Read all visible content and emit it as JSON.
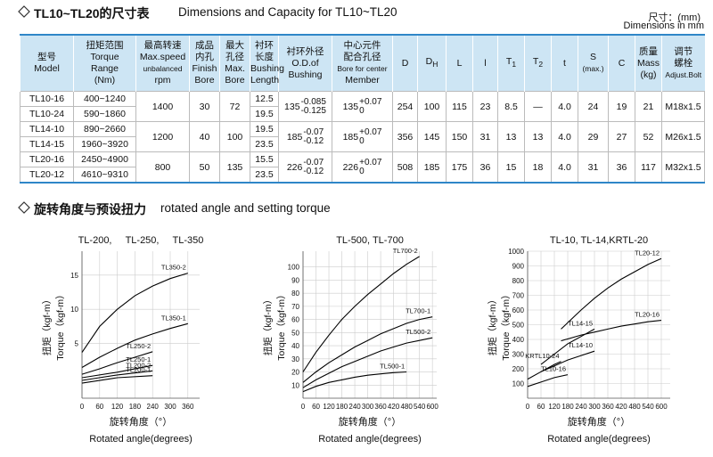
{
  "header": {
    "title_cn": "TL10~TL20的尺寸表",
    "title_en": "Dimensions and Capacity for TL10~TL20",
    "unit_cn": "尺寸：(mm)",
    "unit_en": "Dimensions in mm"
  },
  "table": {
    "columns": [
      {
        "lines": [
          "型号",
          "Model"
        ]
      },
      {
        "lines": [
          "扭矩范围",
          "Torque",
          "Range",
          "(Nm)"
        ]
      },
      {
        "lines": [
          "最高转速",
          "Max.speed",
          "unbalanced",
          "rpm"
        ]
      },
      {
        "lines": [
          "成品",
          "内孔",
          "Finish",
          "Bore"
        ]
      },
      {
        "lines": [
          "最大",
          "孔径",
          "Max.",
          "Bore"
        ]
      },
      {
        "lines": [
          "衬环",
          "长度",
          "Bushing",
          "Length"
        ]
      },
      {
        "lines": [
          "衬环外径",
          "O.D.of",
          "Bushing"
        ]
      },
      {
        "lines": [
          "中心元件",
          "配合孔径",
          "Bore for center",
          "Member"
        ]
      },
      {
        "lines": [
          "D"
        ]
      },
      {
        "lines": [
          "D"
        ],
        "sub": "H"
      },
      {
        "lines": [
          "L"
        ]
      },
      {
        "lines": [
          "l"
        ]
      },
      {
        "lines": [
          "T"
        ],
        "sub": "1"
      },
      {
        "lines": [
          "T"
        ],
        "sub": "2"
      },
      {
        "lines": [
          "t"
        ]
      },
      {
        "lines": [
          "S",
          "(max.)"
        ]
      },
      {
        "lines": [
          "C"
        ]
      },
      {
        "lines": [
          "质量",
          "Mass",
          "(kg)"
        ]
      },
      {
        "lines": [
          "调节",
          "螺栓",
          "Adjust.Bolt"
        ]
      }
    ],
    "groups": [
      {
        "models": [
          "TL10-16",
          "TL10-24"
        ],
        "torque": [
          "400~1240",
          "590~1860"
        ],
        "speed": "1400",
        "finish": "30",
        "max_bore": "72",
        "bushing_length": [
          "12.5",
          "19.5"
        ],
        "od": {
          "base": "135",
          "upper": "-0.085",
          "lower": "-0.125"
        },
        "bore": {
          "base": "135",
          "upper": "+0.07",
          "lower": "0"
        },
        "dims": [
          "254",
          "100",
          "115",
          "23",
          "8.5",
          "—",
          "4.0",
          "24",
          "19",
          "21"
        ],
        "bolt": "M18x1.5"
      },
      {
        "models": [
          "TL14-10",
          "TL14-15"
        ],
        "torque": [
          "890~2660",
          "1960~3920"
        ],
        "speed": "1200",
        "finish": "40",
        "max_bore": "100",
        "bushing_length": [
          "19.5",
          "23.5"
        ],
        "od": {
          "base": "185",
          "upper": "-0.07",
          "lower": "-0.12"
        },
        "bore": {
          "base": "185",
          "upper": "+0.07",
          "lower": "0"
        },
        "dims": [
          "356",
          "145",
          "150",
          "31",
          "13",
          "13",
          "4.0",
          "29",
          "27",
          "52"
        ],
        "bolt": "M26x1.5"
      },
      {
        "models": [
          "TL20-16",
          "TL20-12"
        ],
        "torque": [
          "2450~4900",
          "4610~9310"
        ],
        "speed": "800",
        "finish": "50",
        "max_bore": "135",
        "bushing_length": [
          "15.5",
          "23.5"
        ],
        "od": {
          "base": "226",
          "upper": "-0.07",
          "lower": "-0.12"
        },
        "bore": {
          "base": "226",
          "upper": "+0.07",
          "lower": "0"
        },
        "dims": [
          "508",
          "185",
          "175",
          "36",
          "15",
          "18",
          "4.0",
          "31",
          "36",
          "117"
        ],
        "bolt": "M32x1.5"
      }
    ]
  },
  "section": {
    "title_cn": "旋转角度与预设扭力",
    "title_en": "rotated angle  and setting torque"
  },
  "chart_data": [
    {
      "type": "line",
      "title": "TL-200,     TL-250,     TL-350",
      "y_label": [
        "扭矩（kgf-m）",
        "Torque（kgf-m）"
      ],
      "x_label": [
        "旋转角度（°）",
        "Rotated angle(degrees)"
      ],
      "xlim": [
        0,
        400
      ],
      "ylim": [
        -3,
        18.5
      ],
      "xticks": [
        0,
        60,
        120,
        180,
        240,
        300,
        360
      ],
      "yticks": [
        5,
        10,
        15
      ],
      "grid": true,
      "color": "#000000",
      "series": [
        {
          "name": "TL350-2",
          "x": [
            0,
            60,
            120,
            180,
            240,
            300,
            360
          ],
          "values": [
            3.7,
            7.5,
            10,
            12,
            13.4,
            14.5,
            15.3
          ]
        },
        {
          "name": "TL350-1",
          "x": [
            0,
            60,
            120,
            180,
            240,
            300,
            360
          ],
          "values": [
            1.5,
            3,
            4.3,
            5.5,
            6.4,
            7.2,
            7.9
          ]
        },
        {
          "name": "TL250-2",
          "x": [
            0,
            60,
            120,
            180,
            240
          ],
          "values": [
            0.5,
            1.3,
            2.2,
            3,
            3.8
          ]
        },
        {
          "name": "TL250-1",
          "x": [
            0,
            120,
            240
          ],
          "values": [
            0,
            0.8,
            1.8
          ]
        },
        {
          "name": "TL200-2",
          "x": [
            0,
            120,
            240
          ],
          "values": [
            -0.4,
            0.4,
            1
          ]
        },
        {
          "name": "TL200-1",
          "x": [
            0,
            120,
            240
          ],
          "values": [
            -0.8,
            0,
            0.3
          ]
        }
      ]
    },
    {
      "type": "line",
      "title": "TL-500, TL-700",
      "y_label": [
        "扭矩（kgf-m）",
        "Torque（kgf-m）"
      ],
      "x_label": [
        "旋转角度（°）",
        "Rotated angle(degrees)"
      ],
      "xlim": [
        0,
        620
      ],
      "ylim": [
        0,
        112
      ],
      "xticks": [
        0,
        60,
        120,
        180,
        240,
        300,
        360,
        420,
        480,
        540,
        600
      ],
      "yticks": [
        10,
        20,
        30,
        40,
        50,
        60,
        70,
        80,
        90,
        100
      ],
      "grid": true,
      "color": "#000000",
      "series": [
        {
          "name": "TL700-2",
          "x": [
            0,
            60,
            120,
            180,
            240,
            300,
            360,
            420,
            480,
            540
          ],
          "values": [
            20,
            35,
            48,
            60,
            70,
            79,
            87,
            95,
            102,
            108
          ]
        },
        {
          "name": "TL700-1",
          "x": [
            0,
            60,
            120,
            180,
            240,
            300,
            360,
            420,
            480,
            540,
            600
          ],
          "values": [
            12,
            20,
            27,
            33,
            39,
            44,
            49,
            53,
            57,
            60,
            62
          ]
        },
        {
          "name": "TL500-2",
          "x": [
            0,
            60,
            120,
            180,
            240,
            300,
            360,
            420,
            480,
            540,
            600
          ],
          "values": [
            8,
            14,
            19,
            24,
            28,
            32,
            36,
            39,
            42,
            44,
            46
          ]
        },
        {
          "name": "TL500-1",
          "x": [
            0,
            60,
            120,
            180,
            240,
            300,
            360,
            420,
            480
          ],
          "values": [
            5,
            9,
            12,
            14,
            16,
            17.5,
            18.5,
            19.5,
            20
          ]
        }
      ]
    },
    {
      "type": "line",
      "title": "TL-10, TL-14,KRTL-20",
      "y_label": [
        "扭矩（kgf-m）",
        "Torque（kgf-m）"
      ],
      "x_label": [
        "旋转角度（°）",
        "Rotated angle(degrees)"
      ],
      "xlim": [
        0,
        640
      ],
      "ylim": [
        0,
        1000
      ],
      "xticks": [
        0,
        60,
        120,
        180,
        240,
        300,
        360,
        420,
        480,
        540,
        600
      ],
      "yticks": [
        100,
        200,
        300,
        400,
        500,
        600,
        700,
        800,
        900,
        1000
      ],
      "grid": true,
      "color": "#000000",
      "series": [
        {
          "name": "TL20-12",
          "x": [
            150,
            240,
            300,
            360,
            420,
            480,
            540,
            600
          ],
          "values": [
            470,
            600,
            680,
            750,
            810,
            860,
            910,
            950
          ]
        },
        {
          "name": "TL20-16",
          "x": [
            150,
            240,
            300,
            360,
            420,
            480,
            540,
            600
          ],
          "values": [
            390,
            430,
            450,
            470,
            490,
            505,
            520,
            530
          ]
        },
        {
          "name": "TL14-15",
          "x": [
            60,
            120,
            180,
            240,
            300
          ],
          "values": [
            230,
            300,
            370,
            420,
            470
          ]
        },
        {
          "name": "TL14-10",
          "x": [
            60,
            120,
            180,
            240,
            300
          ],
          "values": [
            180,
            220,
            260,
            290,
            320
          ]
        },
        {
          "name": "KRTL10-24",
          "x": [
            0,
            60,
            120,
            150
          ],
          "values": [
            130,
            180,
            230,
            250
          ]
        },
        {
          "name": "TL10-16",
          "x": [
            0,
            60,
            120,
            180
          ],
          "values": [
            80,
            110,
            140,
            160
          ]
        }
      ]
    }
  ]
}
